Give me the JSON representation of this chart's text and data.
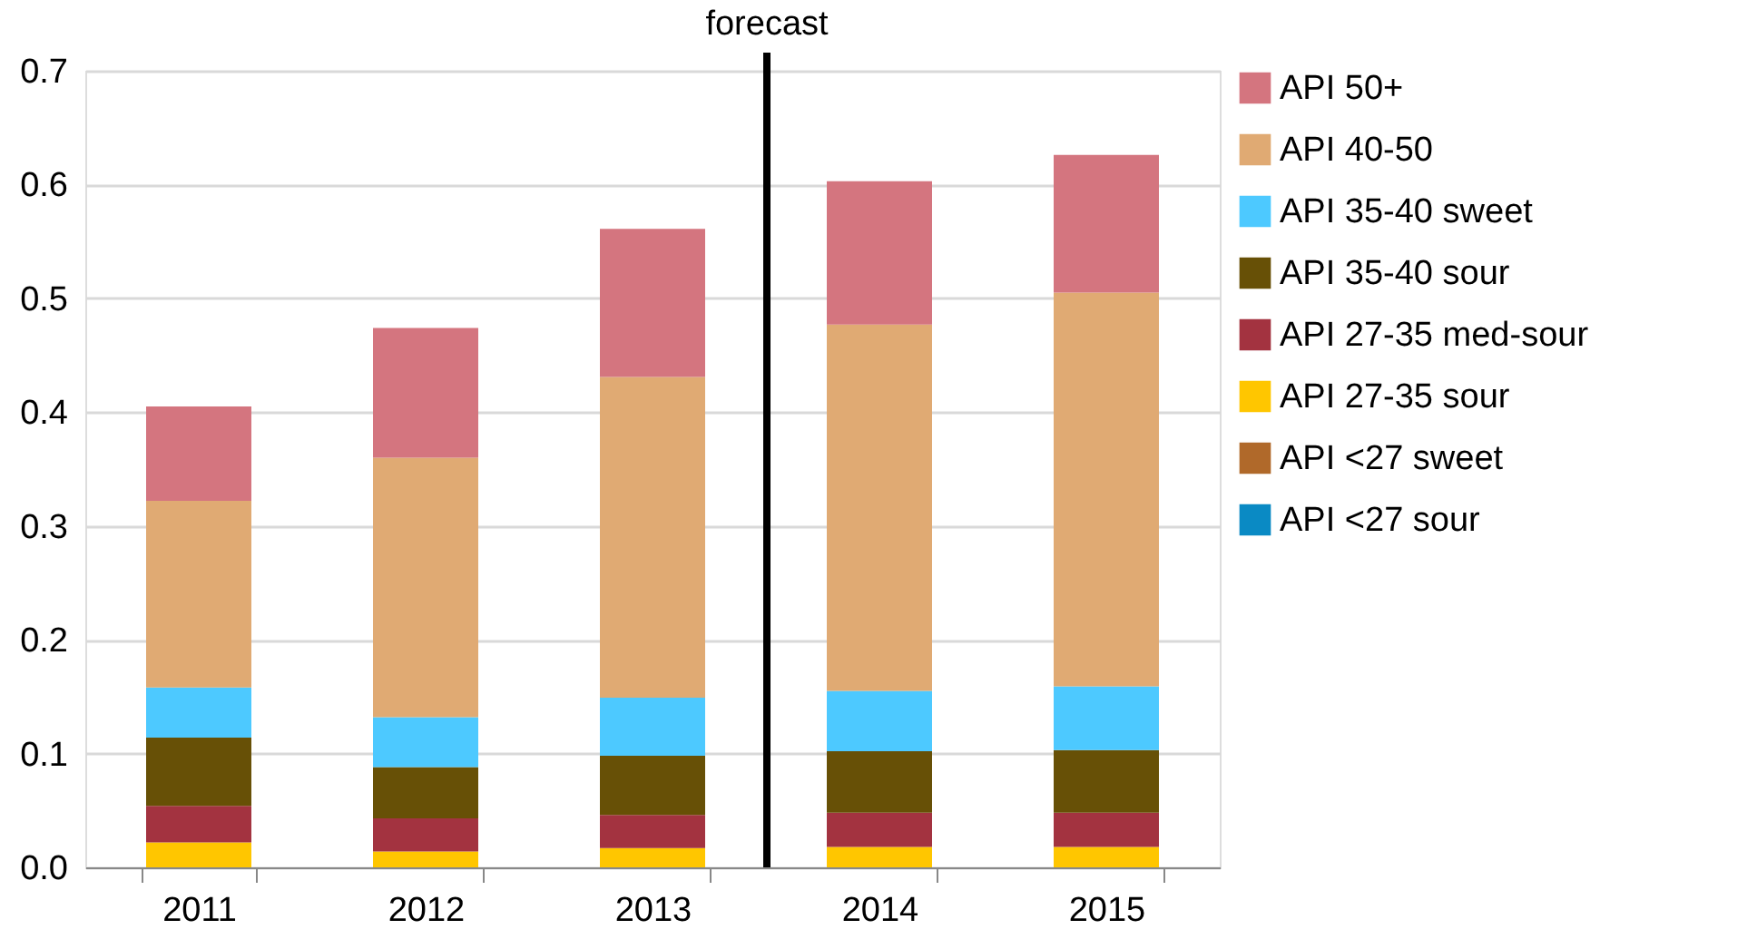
{
  "chart_data": {
    "type": "bar",
    "stacked": true,
    "categories": [
      "2011",
      "2012",
      "2013",
      "2014",
      "2015"
    ],
    "series": [
      {
        "name": "API <27 sour",
        "color": "#0a8ac4",
        "values": [
          0,
          0,
          0,
          0,
          0
        ]
      },
      {
        "name": "API <27 sweet",
        "color": "#b0692a",
        "values": [
          0,
          0,
          0,
          0,
          0
        ]
      },
      {
        "name": "API 27-35 sour",
        "color": "#ffc600",
        "values": [
          0.022,
          0.014,
          0.017,
          0.018,
          0.018
        ]
      },
      {
        "name": "API 27-35 med-sour",
        "color": "#a33340",
        "values": [
          0.032,
          0.029,
          0.029,
          0.03,
          0.03
        ]
      },
      {
        "name": "API 35-40 sour",
        "color": "#675006",
        "values": [
          0.06,
          0.045,
          0.052,
          0.054,
          0.055
        ]
      },
      {
        "name": "API 35-40 sweet",
        "color": "#4dc9ff",
        "values": [
          0.044,
          0.044,
          0.051,
          0.053,
          0.056
        ]
      },
      {
        "name": "API 40-50",
        "color": "#e0aa73",
        "values": [
          0.164,
          0.228,
          0.282,
          0.322,
          0.346
        ]
      },
      {
        "name": "API 50+",
        "color": "#d4757f",
        "values": [
          0.083,
          0.114,
          0.13,
          0.126,
          0.121
        ]
      }
    ],
    "ylim": [
      0,
      0.7
    ],
    "yticks": [
      {
        "value": 0,
        "label": "0.0"
      },
      0.1,
      0.2,
      0.3,
      0.4,
      0.5,
      0.6,
      0.7
    ],
    "grid": "y",
    "legend": "right",
    "ref_lines": [
      {
        "axis": "x",
        "value": "2014",
        "label": "forecast",
        "color": "#000000"
      }
    ]
  }
}
